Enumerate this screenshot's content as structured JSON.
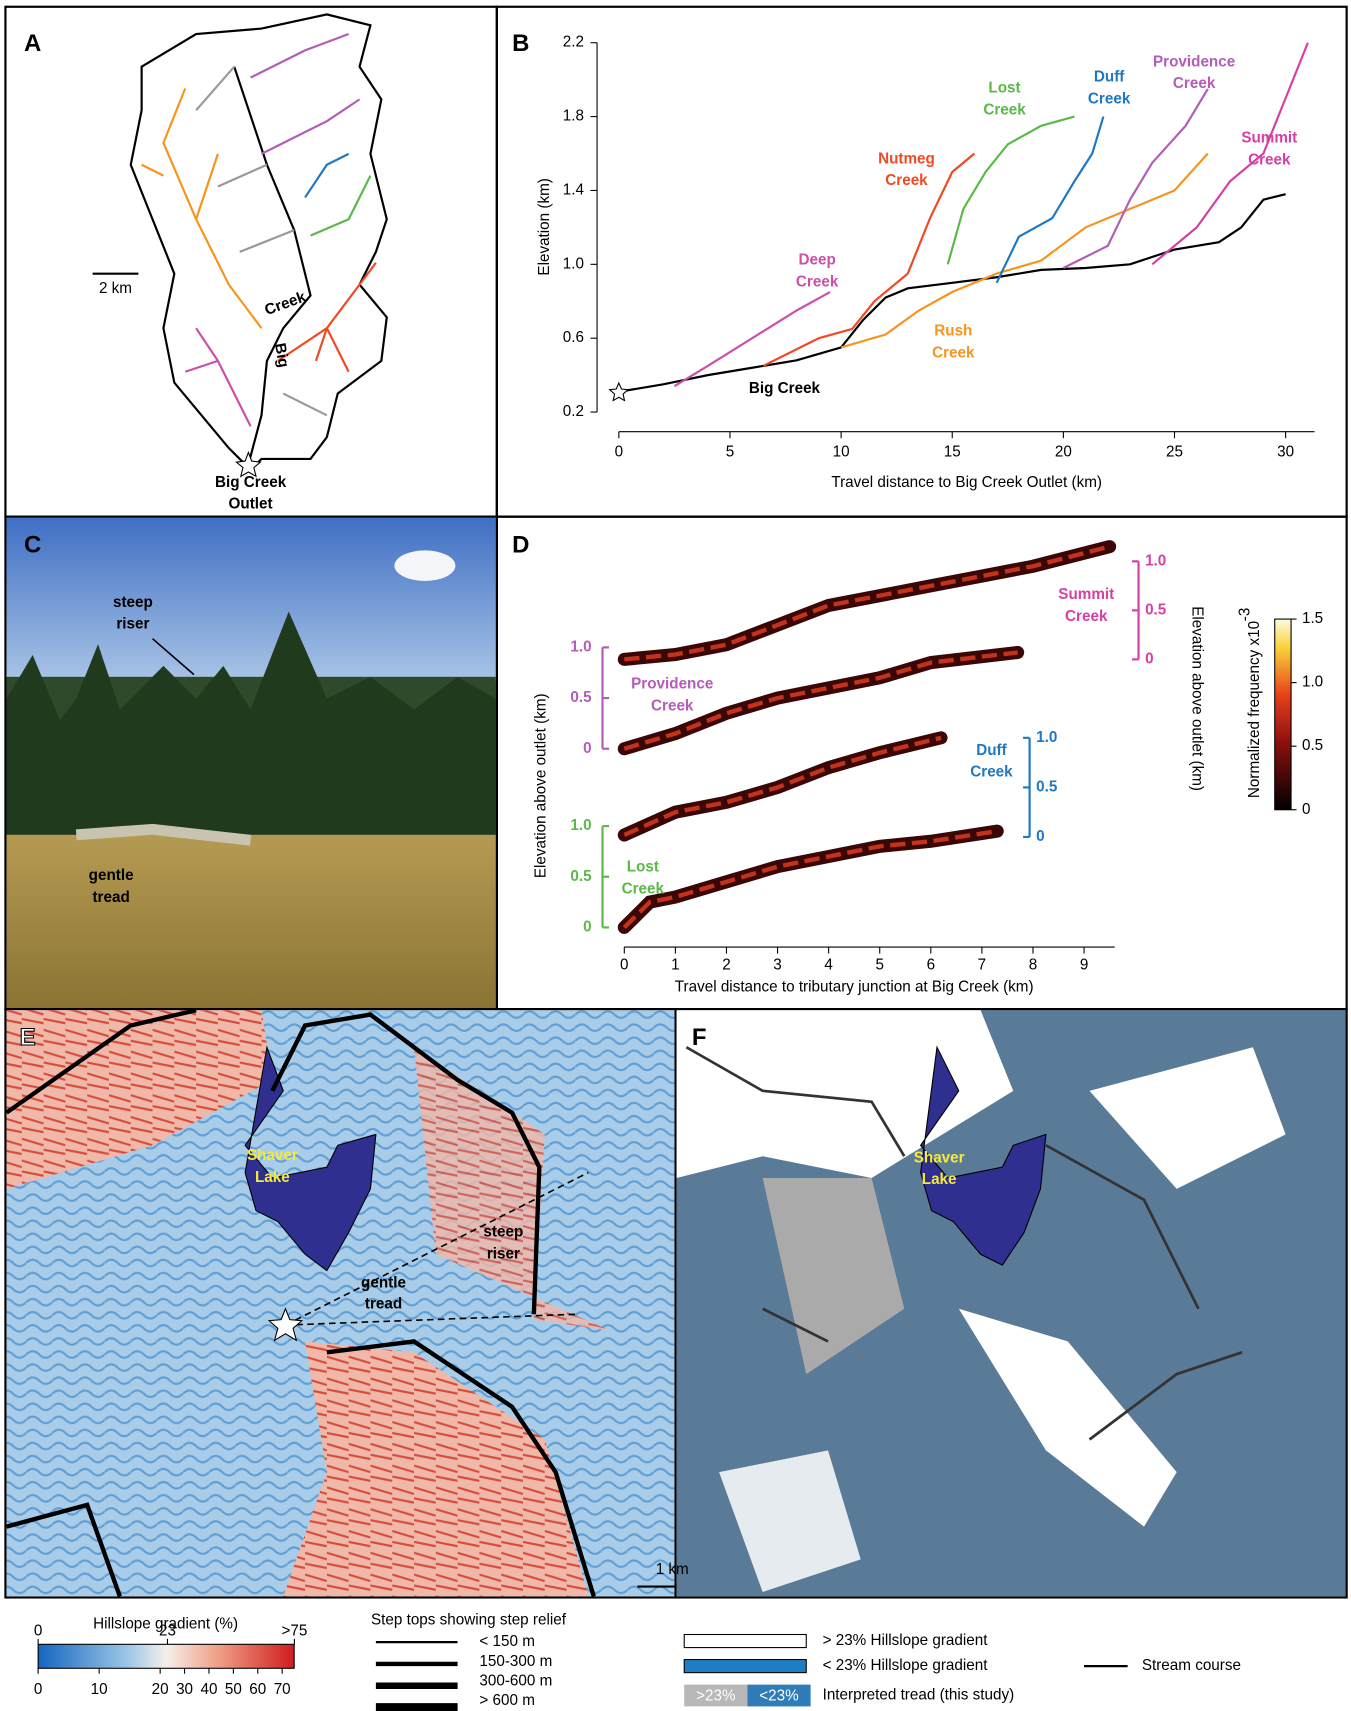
{
  "panel_a": {
    "label": "A",
    "scale_bar": "2 km",
    "stream_labels": [
      "Creek",
      "Big"
    ],
    "outlet": [
      "Big Creek",
      "Outlet"
    ]
  },
  "panel_b": {
    "label": "B",
    "xlabel": "Travel distance to Big Creek Outlet  (km)",
    "ylabel": "Elevation (km)",
    "xlim": [
      0,
      31.3
    ],
    "ylim": [
      0.2,
      2.2
    ],
    "xticks": [
      0,
      5,
      10,
      15,
      20,
      25,
      30
    ],
    "yticks": [
      0.2,
      0.6,
      {
        "value": 1,
        "label": "1.0"
      },
      1.4,
      1.8,
      2.2
    ],
    "series": [
      {
        "label": [
          "Big Creek"
        ],
        "color": "#000000",
        "x": [
          0,
          2,
          4,
          6,
          8,
          10,
          11,
          12,
          13,
          15,
          17,
          19,
          21,
          23,
          25,
          27,
          28,
          29,
          30
        ],
        "values": [
          0.31,
          0.35,
          0.4,
          0.44,
          0.48,
          0.55,
          0.7,
          0.82,
          0.87,
          0.9,
          0.93,
          0.97,
          0.98,
          1.0,
          1.08,
          1.12,
          1.2,
          1.35,
          1.38
        ]
      },
      {
        "label": [
          "Deep",
          "Creek"
        ],
        "color": "#cc4fa8",
        "x": [
          2.5,
          4,
          6,
          8,
          9.5
        ],
        "values": [
          0.34,
          0.45,
          0.6,
          0.75,
          0.85
        ]
      },
      {
        "label": [
          "Nutmeg",
          "Creek"
        ],
        "color": "#f04a23",
        "x": [
          6.5,
          9,
          10.5,
          11.5,
          13,
          14,
          15,
          16
        ],
        "values": [
          0.45,
          0.6,
          0.65,
          0.8,
          0.95,
          1.25,
          1.5,
          1.6
        ]
      },
      {
        "label": [
          "Rush",
          "Creek"
        ],
        "color": "#f7941d",
        "x": [
          10,
          12,
          13.5,
          15,
          17,
          19,
          21,
          23,
          25,
          26.5
        ],
        "values": [
          0.55,
          0.62,
          0.75,
          0.85,
          0.95,
          1.02,
          1.2,
          1.3,
          1.4,
          1.6
        ]
      },
      {
        "label": [
          "Lost",
          "Creek"
        ],
        "color": "#5ab947",
        "x": [
          14.8,
          15.5,
          16.5,
          17.5,
          19,
          20.5
        ],
        "values": [
          1.0,
          1.3,
          1.5,
          1.65,
          1.75,
          1.8
        ]
      },
      {
        "label": [
          "Duff",
          "Creek"
        ],
        "color": "#1f78c1",
        "x": [
          17,
          18,
          19.5,
          20.5,
          21.3,
          21.8
        ],
        "values": [
          0.9,
          1.15,
          1.25,
          1.45,
          1.6,
          1.8
        ]
      },
      {
        "label": [
          "Providence",
          "Creek"
        ],
        "color": "#b35cb8",
        "x": [
          20,
          22,
          23,
          24,
          25.5,
          26.5
        ],
        "values": [
          0.98,
          1.1,
          1.35,
          1.55,
          1.75,
          1.95
        ]
      },
      {
        "label": [
          "Summit",
          "Creek"
        ],
        "color": "#d63fa3",
        "x": [
          24,
          26,
          27.5,
          29,
          30,
          31
        ],
        "values": [
          1.0,
          1.2,
          1.45,
          1.6,
          1.9,
          2.2
        ]
      }
    ]
  },
  "panel_c": {
    "label": "C",
    "riser": [
      "steep",
      "riser"
    ],
    "tread": [
      "gentle",
      "tread"
    ]
  },
  "panel_d": {
    "label": "D",
    "xlabel": "Travel distance to tributary junction at Big Creek (km)",
    "ylabel_left": "Elevation above outlet (km)",
    "ylabel_right": "Elevation above outlet (km)",
    "xlim": [
      0,
      9.6
    ],
    "xticks": [
      0,
      1,
      2,
      3,
      4,
      5,
      6,
      7,
      8,
      9
    ],
    "series": [
      {
        "label": [
          "Summit",
          "Creek"
        ],
        "color": "#d63fa3",
        "side": "right",
        "ylim": [
          0,
          1.0
        ],
        "yticks": [
          0,
          0.5,
          {
            "value": 1,
            "label": "1.0"
          }
        ],
        "x": [
          0,
          1,
          2,
          3,
          4,
          5,
          6,
          7,
          8,
          9.5
        ],
        "values": [
          0,
          0.05,
          0.15,
          0.35,
          0.55,
          0.65,
          0.75,
          0.85,
          0.95,
          1.15
        ]
      },
      {
        "label": [
          "Providence",
          "Creek"
        ],
        "color": "#b35cb8",
        "side": "left",
        "ylim": [
          0,
          1.0
        ],
        "yticks": [
          0,
          0.5,
          {
            "value": 1,
            "label": "1.0"
          }
        ],
        "x": [
          0,
          1,
          2,
          3,
          4,
          5,
          6,
          7.7
        ],
        "values": [
          0,
          0.15,
          0.35,
          0.5,
          0.6,
          0.7,
          0.85,
          0.95
        ]
      },
      {
        "label": [
          "Duff",
          "Creek"
        ],
        "color": "#1f78c1",
        "side": "right",
        "ylim": [
          0,
          1.0
        ],
        "yticks": [
          0,
          0.5,
          {
            "value": 1,
            "label": "1.0"
          }
        ],
        "x": [
          0,
          1,
          2,
          3,
          4,
          5,
          6.2
        ],
        "values": [
          0.02,
          0.25,
          0.35,
          0.5,
          0.7,
          0.85,
          1.0
        ]
      },
      {
        "label": [
          "Lost",
          "Creek"
        ],
        "color": "#5ab947",
        "side": "left",
        "ylim": [
          0,
          1.0
        ],
        "yticks": [
          0,
          0.5,
          {
            "value": 1,
            "label": "1.0"
          }
        ],
        "x": [
          0,
          0.5,
          1,
          2,
          3,
          4,
          5,
          6,
          7.3
        ],
        "values": [
          0,
          0.25,
          0.3,
          0.45,
          0.6,
          0.7,
          0.8,
          0.85,
          0.95
        ]
      }
    ],
    "colorbar": {
      "title": "Normalized frequency  x10",
      "exponent": "-3",
      "lim": [
        0,
        1.5
      ],
      "ticks": [
        0,
        0.5,
        {
          "value": 1,
          "label": "1.0"
        },
        1.5
      ]
    }
  },
  "panel_e": {
    "label": "E",
    "lake": [
      "Shaver",
      "Lake"
    ],
    "riser": [
      "steep",
      "riser"
    ],
    "tread": [
      "gentle",
      "tread"
    ],
    "scale_bar": "1 km"
  },
  "panel_f": {
    "label": "F",
    "lake": [
      "Shaver",
      "Lake"
    ]
  },
  "legend": {
    "gradient_title": "Hillslope gradient (%)",
    "gradient_lim": [
      0,
      75
    ],
    "top_ticks": [
      0,
      23,
      {
        "value": 75,
        "label": ">75"
      }
    ],
    "bottom_ticks": [
      0,
      10,
      20,
      30,
      40,
      50,
      60,
      70
    ],
    "steps_title": "Step tops showing step relief",
    "steps": [
      "< 150 m",
      "150-300 m",
      "300-600 m",
      "> 600 m"
    ],
    "classes": [
      "> 23% Hillslope gradient",
      "< 23% Hillslope gradient",
      "Interpreted tread (this study)"
    ],
    "tread_boxes": [
      ">23%",
      "<23%"
    ],
    "stream": "Stream course"
  }
}
